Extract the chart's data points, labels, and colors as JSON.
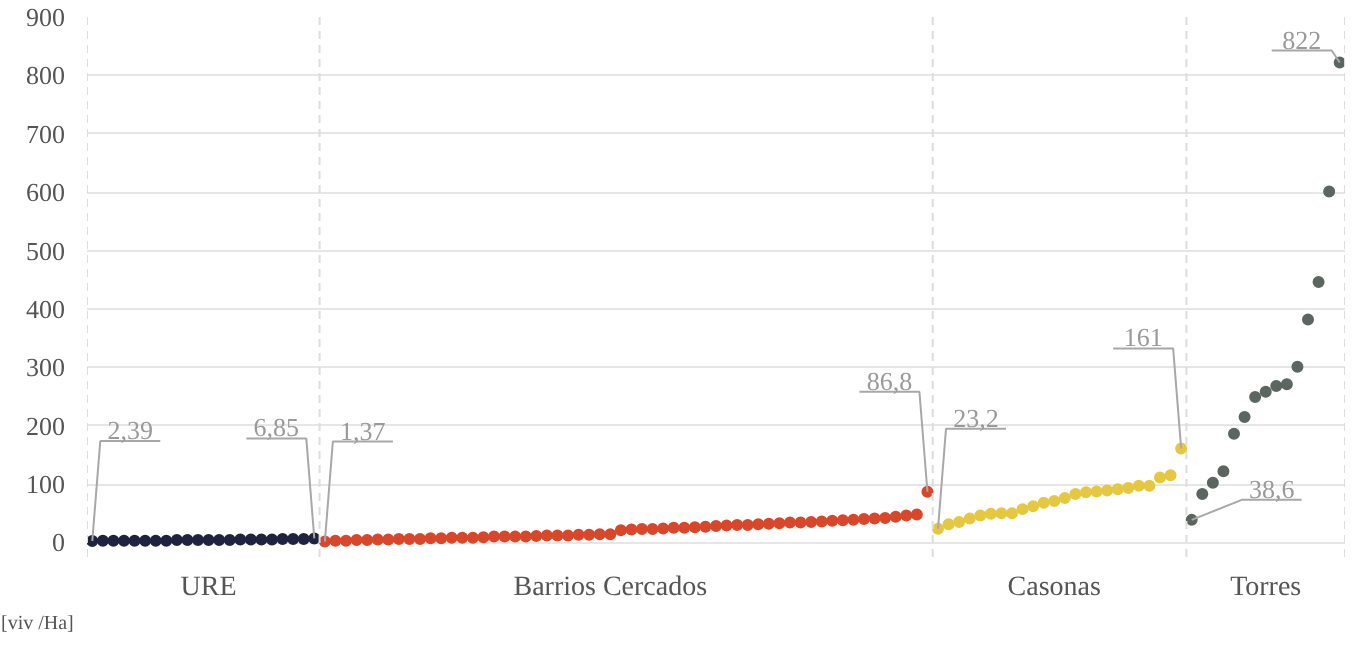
{
  "chart_data": {
    "type": "scatter",
    "ylabel": "[viv /Ha]",
    "marker": "circle",
    "grid": "y",
    "ylim": [
      -25,
      900
    ],
    "yticks": [
      0,
      100,
      200,
      300,
      400,
      500,
      600,
      700,
      800,
      900
    ],
    "categories": [
      null,
      null,
      null,
      null,
      null,
      null,
      null,
      null,
      null,
      null,
      null,
      "URE",
      null,
      null,
      null,
      null,
      null,
      null,
      null,
      null,
      null,
      null,
      null,
      null,
      null,
      null,
      null,
      null,
      null,
      null,
      null,
      null,
      null,
      null,
      null,
      null,
      null,
      null,
      null,
      null,
      null,
      null,
      null,
      null,
      null,
      null,
      null,
      null,
      null,
      "Barrios Cercados",
      null,
      null,
      null,
      null,
      null,
      null,
      null,
      null,
      null,
      null,
      null,
      null,
      null,
      null,
      null,
      null,
      null,
      null,
      null,
      null,
      null,
      null,
      null,
      null,
      null,
      null,
      null,
      null,
      null,
      null,
      null,
      null,
      null,
      null,
      null,
      null,
      null,
      null,
      null,
      null,
      null,
      "Casonas",
      null,
      null,
      null,
      null,
      null,
      null,
      null,
      null,
      null,
      null,
      null,
      null,
      null,
      null,
      null,
      null,
      null,
      null,
      null,
      "Torres",
      null,
      null,
      null,
      null,
      null,
      null,
      null
    ],
    "values": [
      2.39,
      3,
      3,
      3,
      3,
      3,
      3,
      3,
      4,
      4,
      4,
      4,
      4,
      4,
      5,
      5,
      5,
      5,
      6,
      6,
      6,
      6.85,
      1.37,
      3,
      3,
      4,
      4,
      5,
      5,
      6,
      6,
      6,
      7,
      7,
      8,
      8,
      8,
      9,
      10,
      10,
      10,
      10,
      11,
      12,
      12,
      12,
      13,
      13,
      14,
      14,
      21,
      22,
      23,
      23,
      24,
      25,
      25,
      26,
      27,
      28,
      29,
      30,
      30,
      31,
      32,
      33,
      34,
      34,
      35,
      36,
      37,
      38,
      39,
      40,
      41,
      42,
      44,
      46,
      48,
      86.8,
      23.2,
      31,
      35,
      41,
      46,
      49,
      50,
      50,
      57,
      62,
      68,
      71,
      76,
      83,
      86,
      87,
      89,
      91,
      93,
      97,
      97,
      111,
      115,
      161,
      38.6,
      83,
      102,
      122,
      186,
      215,
      249,
      258,
      268,
      271,
      301,
      382,
      446,
      601,
      822
    ],
    "value_labels": [
      "2,39",
      null,
      null,
      null,
      null,
      null,
      null,
      null,
      null,
      null,
      null,
      null,
      null,
      null,
      null,
      null,
      null,
      null,
      null,
      null,
      null,
      "6,85",
      "1,37",
      null,
      null,
      null,
      null,
      null,
      null,
      null,
      null,
      null,
      null,
      null,
      null,
      null,
      null,
      null,
      null,
      null,
      null,
      null,
      null,
      null,
      null,
      null,
      null,
      null,
      null,
      null,
      null,
      null,
      null,
      null,
      null,
      null,
      null,
      null,
      null,
      null,
      null,
      null,
      null,
      null,
      null,
      null,
      null,
      null,
      null,
      null,
      null,
      null,
      null,
      null,
      null,
      null,
      null,
      null,
      null,
      "86,8",
      "23,2",
      null,
      null,
      null,
      null,
      null,
      null,
      null,
      null,
      null,
      null,
      null,
      null,
      null,
      null,
      null,
      null,
      null,
      null,
      null,
      null,
      null,
      null,
      "161",
      "38,6",
      null,
      null,
      null,
      null,
      null,
      null,
      null,
      null,
      null,
      null,
      null,
      null,
      null,
      "822"
    ],
    "colors": [
      "#1f2340",
      "#1f2340",
      "#1f2340",
      "#1f2340",
      "#1f2340",
      "#1f2340",
      "#1f2340",
      "#1f2340",
      "#1f2340",
      "#1f2340",
      "#1f2340",
      "#1f2340",
      "#1f2340",
      "#1f2340",
      "#1f2340",
      "#1f2340",
      "#1f2340",
      "#1f2340",
      "#1f2340",
      "#1f2340",
      "#1f2340",
      "#1f2340",
      "#d9472b",
      "#d9472b",
      "#d9472b",
      "#d9472b",
      "#d9472b",
      "#d9472b",
      "#d9472b",
      "#d9472b",
      "#d9472b",
      "#d9472b",
      "#d9472b",
      "#d9472b",
      "#d9472b",
      "#d9472b",
      "#d9472b",
      "#d9472b",
      "#d9472b",
      "#d9472b",
      "#d9472b",
      "#d9472b",
      "#d9472b",
      "#d9472b",
      "#d9472b",
      "#d9472b",
      "#d9472b",
      "#d9472b",
      "#d9472b",
      "#d9472b",
      "#d9472b",
      "#d9472b",
      "#d9472b",
      "#d9472b",
      "#d9472b",
      "#d9472b",
      "#d9472b",
      "#d9472b",
      "#d9472b",
      "#d9472b",
      "#d9472b",
      "#d9472b",
      "#d9472b",
      "#d9472b",
      "#d9472b",
      "#d9472b",
      "#d9472b",
      "#d9472b",
      "#d9472b",
      "#d9472b",
      "#d9472b",
      "#d9472b",
      "#d9472b",
      "#d9472b",
      "#d9472b",
      "#d9472b",
      "#d9472b",
      "#d9472b",
      "#d9472b",
      "#d9472b",
      "#e6c840",
      "#e6c840",
      "#e6c840",
      "#e6c840",
      "#e6c840",
      "#e6c840",
      "#e6c840",
      "#e6c840",
      "#e6c840",
      "#e6c840",
      "#e6c840",
      "#e6c840",
      "#e6c840",
      "#e6c840",
      "#e6c840",
      "#e6c840",
      "#e6c840",
      "#e6c840",
      "#e6c840",
      "#e6c840",
      "#e6c840",
      "#e6c840",
      "#e6c840",
      "#e6c840",
      "#5c6660",
      "#5c6660",
      "#5c6660",
      "#5c6660",
      "#5c6660",
      "#5c6660",
      "#5c6660",
      "#5c6660",
      "#5c6660",
      "#5c6660",
      "#5c6660",
      "#5c6660",
      "#5c6660",
      "#5c6660",
      "#5c6660"
    ]
  }
}
